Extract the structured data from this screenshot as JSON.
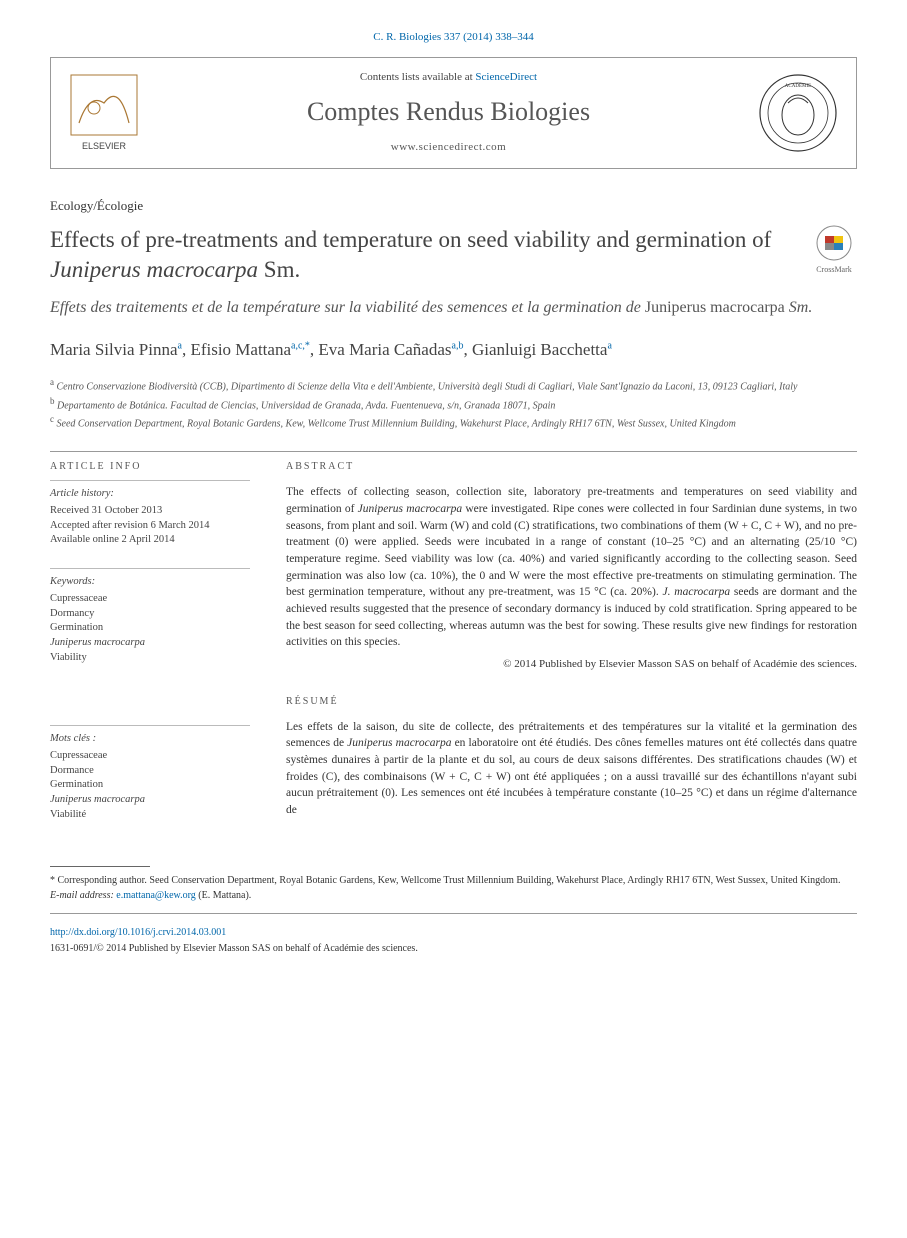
{
  "citation": "C. R. Biologies 337 (2014) 338–344",
  "header": {
    "contents_prefix": "Contents lists available at ",
    "scidirect": "ScienceDirect",
    "journal": "Comptes Rendus Biologies",
    "url": "www.sciencedirect.com",
    "elsevier_label": "ELSEVIER"
  },
  "section": "Ecology/Écologie",
  "title_a": "Effects of pre-treatments and temperature on seed viability and germination of ",
  "title_b": "Juniperus macrocarpa",
  "title_c": " Sm.",
  "crossmark": "CrossMark",
  "subtitle_a": "Effets des traitements et de la température sur la viabilité des semences et la germination de ",
  "subtitle_b": "Juniperus macrocarpa",
  "subtitle_c": " Sm.",
  "authors": [
    {
      "name": "Maria Silvia Pinna",
      "sup": "a"
    },
    {
      "name": "Efisio Mattana",
      "sup": "a,c,*"
    },
    {
      "name": "Eva Maria Cañadas",
      "sup": "a,b"
    },
    {
      "name": "Gianluigi Bacchetta",
      "sup": "a"
    }
  ],
  "affiliations": [
    {
      "sup": "a",
      "text": "Centro Conservazione Biodiversità (CCB), Dipartimento di Scienze della Vita e dell'Ambiente, Università degli Studi di Cagliari, Viale Sant'Ignazio da Laconi, 13, 09123 Cagliari, Italy"
    },
    {
      "sup": "b",
      "text": "Departamento de Botánica. Facultad de Ciencias, Universidad de Granada, Avda. Fuentenueva, s/n, Granada 18071, Spain"
    },
    {
      "sup": "c",
      "text": "Seed Conservation Department, Royal Botanic Gardens, Kew, Wellcome Trust Millennium Building, Wakehurst Place, Ardingly RH17 6TN, West Sussex, United Kingdom"
    }
  ],
  "article_info": {
    "heading": "ARTICLE INFO",
    "history_label": "Article history:",
    "history": [
      "Received 31 October 2013",
      "Accepted after revision 6 March 2014",
      "Available online 2 April 2014"
    ],
    "keywords_label": "Keywords:",
    "keywords": [
      "Cupressaceae",
      "Dormancy",
      "Germination",
      "Juniperus macrocarpa",
      "Viability"
    ],
    "motscles_label": "Mots clés :",
    "motscles": [
      "Cupressaceae",
      "Dormance",
      "Germination",
      "Juniperus macrocarpa",
      "Viabilité"
    ]
  },
  "abstract": {
    "heading": "ABSTRACT",
    "text": "The effects of collecting season, collection site, laboratory pre-treatments and temperatures on seed viability and germination of Juniperus macrocarpa were investigated. Ripe cones were collected in four Sardinian dune systems, in two seasons, from plant and soil. Warm (W) and cold (C) stratifications, two combinations of them (W + C, C + W), and no pre-treatment (0) were applied. Seeds were incubated in a range of constant (10–25 °C) and an alternating (25/10 °C) temperature regime. Seed viability was low (ca. 40%) and varied significantly according to the collecting season. Seed germination was also low (ca. 10%), the 0 and W were the most effective pre-treatments on stimulating germination. The best germination temperature, without any pre-treatment, was 15 °C (ca. 20%). J. macrocarpa seeds are dormant and the achieved results suggested that the presence of secondary dormancy is induced by cold stratification. Spring appeared to be the best season for seed collecting, whereas autumn was the best for sowing. These results give new findings for restoration activities on this species.",
    "copyright": "© 2014 Published by Elsevier Masson SAS on behalf of Académie des sciences."
  },
  "resume": {
    "heading": "RÉSUMÉ",
    "text": "Les effets de la saison, du site de collecte, des prétraitements et des températures sur la vitalité et la germination des semences de Juniperus macrocarpa en laboratoire ont été étudiés. Des cônes femelles matures ont été collectés dans quatre systèmes dunaires à partir de la plante et du sol, au cours de deux saisons différentes. Des stratifications chaudes (W) et froides (C), des combinaisons (W + C, C + W) ont été appliquées ; on a aussi travaillé sur des échantillons n'ayant subi aucun prétraitement (0). Les semences ont été incubées à température constante (10–25 °C) et dans un régime d'alternance de"
  },
  "footnotes": {
    "corresponding": "* Corresponding author. Seed Conservation Department, Royal Botanic Gardens, Kew, Wellcome Trust Millennium Building, Wakehurst Place, Ardingly RH17 6TN, West Sussex, United Kingdom.",
    "email_label": "E-mail address: ",
    "email": "e.mattana@kew.org",
    "email_suffix": " (E. Mattana)."
  },
  "doi": {
    "url": "http://dx.doi.org/10.1016/j.crvi.2014.03.001",
    "issn_line": "1631-0691/© 2014 Published by Elsevier Masson SAS on behalf of Académie des sciences."
  },
  "colors": {
    "link": "#0066aa",
    "text": "#2a2a2a",
    "muted": "#555555",
    "border": "#999999"
  }
}
